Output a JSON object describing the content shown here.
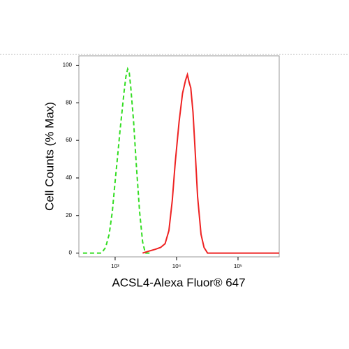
{
  "chart_data": {
    "type": "line",
    "x_label": "ACSL4-Alexa Fluor® 647",
    "y_label": "Cell Counts (% Max)",
    "xscale": "log",
    "xlim": [
      257,
      468000
    ],
    "xticks": [
      {
        "value": 1000,
        "label": "10³"
      },
      {
        "value": 10000,
        "label": "10⁴"
      },
      {
        "value": 100000,
        "label": "10⁵"
      }
    ],
    "ylim": [
      -2,
      105
    ],
    "yticks": [
      0,
      20,
      40,
      60,
      80,
      100
    ],
    "series": [
      {
        "color": "#33dd22",
        "dashed": true,
        "x": [
          300,
          600,
          700,
          800,
          900,
          1000,
          1100,
          1200,
          1300,
          1400,
          1500,
          1600,
          1700,
          1800,
          2000,
          2200,
          2500,
          2800,
          3100,
          4000
        ],
        "values": [
          0,
          0,
          3,
          10,
          22,
          38,
          52,
          65,
          76,
          86,
          94,
          98,
          96,
          88,
          70,
          48,
          22,
          6,
          0,
          0
        ]
      },
      {
        "color": "#ee2222",
        "dashed": false,
        "x": [
          2800,
          3500,
          4500,
          5500,
          6500,
          7500,
          8500,
          9500,
          11000,
          12500,
          14000,
          15000,
          16000,
          17000,
          18500,
          20000,
          22000,
          25000,
          28000,
          32000,
          40000,
          468000
        ],
        "values": [
          0,
          1,
          2,
          3,
          5,
          12,
          28,
          48,
          70,
          85,
          92,
          95,
          91,
          88,
          75,
          55,
          30,
          10,
          3,
          0,
          0,
          0
        ]
      }
    ]
  }
}
